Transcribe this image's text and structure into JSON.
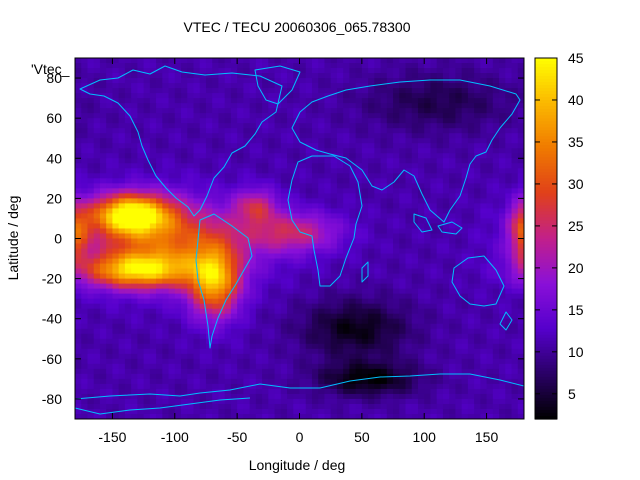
{
  "chart_data": {
    "type": "heatmap",
    "title": "VTEC / TECU 20060306_065.78300",
    "xlabel": "Longitude / deg",
    "ylabel": "Latitude / deg",
    "key_label": "'Vtec_",
    "xlim": [
      -180,
      180
    ],
    "ylim": [
      -90,
      90
    ],
    "x_ticks": [
      -150,
      -100,
      -50,
      0,
      50,
      100,
      150
    ],
    "y_ticks": [
      -80,
      -60,
      -40,
      -20,
      0,
      20,
      40,
      60,
      80
    ],
    "colorbar": {
      "range": [
        2,
        45
      ],
      "ticks": [
        5,
        10,
        15,
        20,
        25,
        30,
        35,
        40,
        45
      ],
      "palette": [
        "#000000",
        "#2a0066",
        "#5500cc",
        "#8a10d8",
        "#c2208a",
        "#e0401a",
        "#f07a00",
        "#fbb800",
        "#ffff00"
      ]
    },
    "background_level": 11,
    "features": [
      {
        "name": "equatorial-anomaly-pacific-north",
        "lon": -135,
        "lat": 12,
        "peak": 43,
        "width_lon": 22,
        "width_lat": 7
      },
      {
        "name": "equatorial-anomaly-pacific-south",
        "lon": -130,
        "lat": -16,
        "peak": 36,
        "width_lon": 30,
        "width_lat": 6
      },
      {
        "name": "eastern-pacific-band",
        "lon": -105,
        "lat": -2,
        "peak": 30,
        "width_lon": 45,
        "width_lat": 14
      },
      {
        "name": "south-american-crest",
        "lon": -68,
        "lat": -22,
        "peak": 36,
        "width_lon": 14,
        "width_lat": 12
      },
      {
        "name": "tropical-atlantic-tongue",
        "lon": -5,
        "lat": 3,
        "peak": 24,
        "width_lon": 26,
        "width_lat": 7
      },
      {
        "name": "mid-atlantic-north",
        "lon": -35,
        "lat": 16,
        "peak": 23,
        "width_lon": 12,
        "width_lat": 6
      },
      {
        "name": "dateline-east-edge",
        "lon": 180,
        "lat": 3,
        "peak": 27,
        "width_lon": 8,
        "width_lat": 10
      },
      {
        "name": "southern-africa-depletion",
        "lon": 45,
        "lat": -45,
        "peak": 3,
        "width_lon": 30,
        "width_lat": 10
      },
      {
        "name": "antarctic-depletion",
        "lon": 55,
        "lat": -70,
        "peak": 2,
        "width_lon": 28,
        "width_lat": 6
      },
      {
        "name": "north-asia-depletion",
        "lon": 110,
        "lat": 68,
        "peak": 6,
        "width_lon": 40,
        "width_lat": 10
      }
    ]
  }
}
